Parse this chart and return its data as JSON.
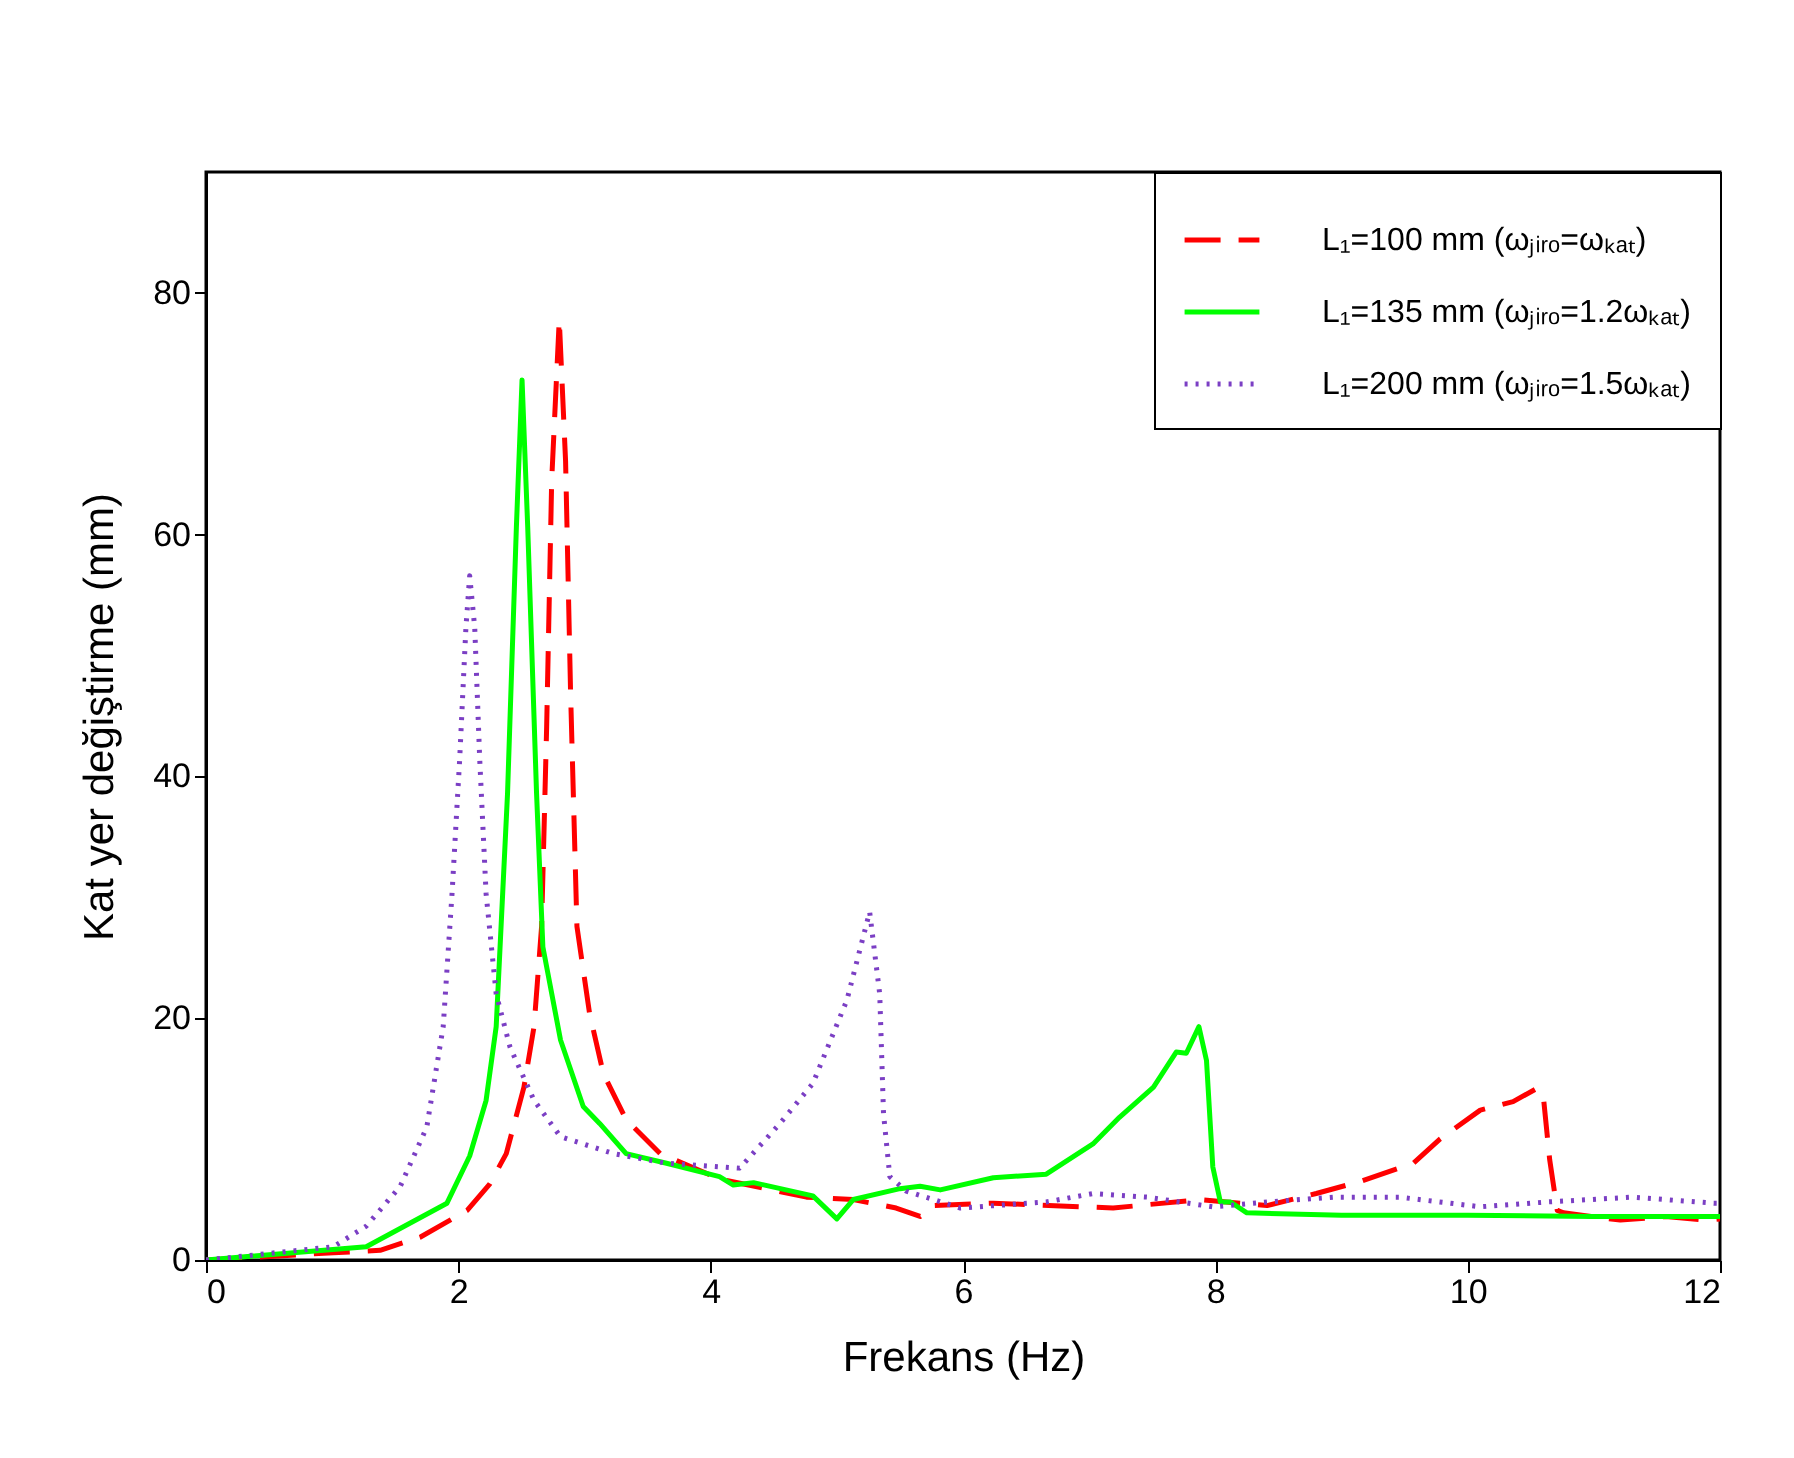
{
  "chart_data": {
    "type": "line",
    "xlabel": "Frekans (Hz)",
    "ylabel": "Kat yer değiştirme (mm)",
    "xlim": [
      0,
      12
    ],
    "ylim": [
      0,
      90
    ],
    "xticks": [
      0,
      2,
      4,
      6,
      8,
      10,
      12
    ],
    "yticks": [
      0,
      20,
      40,
      60,
      80
    ],
    "grid": false,
    "legend": "top right",
    "series": [
      {
        "name": "L₁=100 mm (ωⱼᵢᵣₒ=ωₖₐₜ)",
        "color": "#ff0000",
        "line_style": "dashed",
        "x": [
          0,
          1.01,
          1.38,
          1.7,
          2.07,
          2.25,
          2.38,
          2.52,
          2.6,
          2.66,
          2.7,
          2.74,
          2.8,
          2.85,
          2.89,
          2.94,
          3.04,
          3.15,
          3.33,
          3.6,
          4.07,
          4.44,
          4.76,
          5.13,
          5.47,
          5.66,
          5.77,
          6.24,
          7.19,
          7.88,
          8.41,
          8.8,
          9.15,
          9.57,
          9.78,
          10.1,
          10.36,
          10.55,
          10.6,
          10.65,
          10.71,
          10.76,
          11.21,
          11.57,
          11.89,
          12
        ],
        "values": [
          0,
          0.6,
          0.8,
          1.9,
          4.1,
          6.3,
          8.8,
          14.3,
          19.3,
          27.6,
          44.1,
          64.5,
          77.8,
          66.1,
          46.8,
          27.6,
          20.4,
          15.4,
          11.6,
          8.8,
          6.7,
          5.9,
          5.2,
          5.0,
          4.3,
          3.6,
          4.5,
          4.7,
          4.3,
          5.0,
          4.5,
          5.5,
          6.5,
          8.0,
          10.0,
          12.4,
          13.1,
          14.2,
          13.5,
          8.3,
          4.1,
          3.9,
          3.3,
          3.6,
          3.3,
          3.4
        ]
      },
      {
        "name": "L₁=135 mm (ωⱼᵢᵣₒ=1.2ωₖₐₜ)",
        "color": "#00ff00",
        "line_style": "solid",
        "x": [
          0,
          1.27,
          1.91,
          2.09,
          2.22,
          2.3,
          2.39,
          2.46,
          2.505,
          2.55,
          2.62,
          2.67,
          2.81,
          2.99,
          3.12,
          3.33,
          3.65,
          4.07,
          4.18,
          4.34,
          4.81,
          5.0,
          5.13,
          5.5,
          5.66,
          5.82,
          6.24,
          6.66,
          7.03,
          7.24,
          7.51,
          7.69,
          7.77,
          7.87,
          7.93,
          7.98,
          8.04,
          8.12,
          8.25,
          9.0,
          10.0,
          11.0,
          12
        ],
        "values": [
          0,
          1.1,
          4.7,
          8.6,
          13.2,
          19.3,
          38.6,
          60.6,
          72.8,
          60.6,
          38.6,
          25.9,
          18.2,
          12.7,
          11.3,
          8.8,
          8.0,
          6.9,
          6.2,
          6.4,
          5.3,
          3.4,
          5.0,
          5.9,
          6.1,
          5.8,
          6.8,
          7.1,
          9.6,
          11.8,
          14.3,
          17.2,
          17.1,
          19.3,
          16.5,
          7.7,
          4.8,
          4.8,
          3.9,
          3.7,
          3.7,
          3.6,
          3.6
        ]
      },
      {
        "name": "L₁=200 mm (ωⱼᵢᵣₒ=1.5ωₖₐₜ)",
        "color": "#7b3fc4",
        "line_style": "dotted",
        "x": [
          0,
          1.01,
          1.27,
          1.54,
          1.75,
          1.88,
          1.95,
          2.01,
          2.06,
          2.09,
          2.13,
          2.17,
          2.22,
          2.3,
          2.41,
          2.6,
          2.81,
          3.23,
          3.65,
          4.23,
          4.55,
          4.81,
          5.08,
          5.26,
          5.34,
          5.37,
          5.42,
          5.55,
          5.98,
          6.66,
          7.03,
          7.46,
          7.98,
          8.41,
          8.94,
          9.46,
          10.1,
          10.63,
          11.31,
          11.95,
          12
        ],
        "values": [
          0,
          1.1,
          2.8,
          6.1,
          11.0,
          19.3,
          30.3,
          41.3,
          52.3,
          56.6,
          52.3,
          41.3,
          30.3,
          22.0,
          17.6,
          13.2,
          10.2,
          8.8,
          8.0,
          7.6,
          11.3,
          14.6,
          21.5,
          28.8,
          22.0,
          12.1,
          6.9,
          5.7,
          4.3,
          4.8,
          5.5,
          5.2,
          4.4,
          4.8,
          5.2,
          5.2,
          4.4,
          4.8,
          5.2,
          4.7,
          4.7
        ]
      }
    ]
  }
}
